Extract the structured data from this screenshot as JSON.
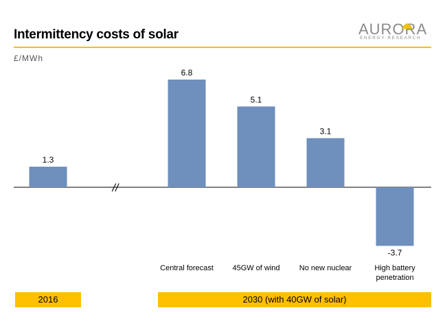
{
  "header": {
    "title": "Intermittency costs of solar",
    "logo_main": "AURORA",
    "logo_sub": "ENERGY RESEARCH"
  },
  "unit_label": "£/MWh",
  "periods": [
    {
      "label": "2016"
    },
    {
      "label": "2030 (with 40GW of solar)"
    }
  ],
  "axis_break_symbol": "//",
  "colors": {
    "bar": "#6f8fbd",
    "accent": "#f2c200",
    "period_band": "#ffc000"
  },
  "chart_data": {
    "type": "bar",
    "title": "Intermittency costs of solar",
    "ylabel": "£/MWh",
    "categories": [
      "",
      "Central forecast",
      "45GW of wind",
      "No new nuclear",
      "High battery penetration"
    ],
    "values": [
      1.3,
      6.8,
      5.1,
      3.1,
      -3.7
    ],
    "value_labels": [
      "1.3",
      "6.8",
      "5.1",
      "3.1",
      "-3.7"
    ],
    "ylim": [
      -3.7,
      6.8
    ],
    "grid": false,
    "axis_break_between": [
      "2016",
      "2030"
    ]
  }
}
